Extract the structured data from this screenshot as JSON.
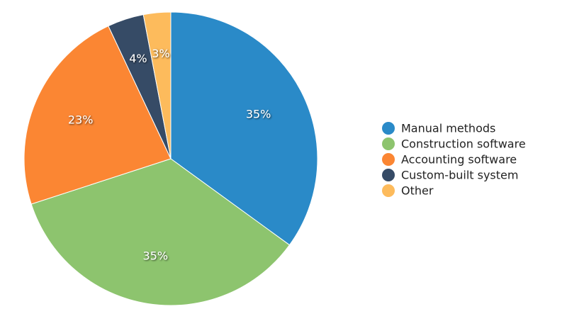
{
  "chart_data": {
    "type": "pie",
    "title": "",
    "labels": [
      "Manual methods",
      "Construction software",
      "Accounting software",
      "Custom-built system",
      "Other"
    ],
    "values": [
      35,
      35,
      23,
      4,
      3
    ],
    "value_labels": [
      "35%",
      "35%",
      "23%",
      "4%",
      "3%"
    ],
    "colors": [
      "#2a8ac8",
      "#8dc46e",
      "#fb8633",
      "#364b66",
      "#fdbb5c"
    ],
    "start_angle": "12 o'clock",
    "direction": "clockwise",
    "legend": {
      "position": "right",
      "items": [
        "Manual methods",
        "Construction software",
        "Accounting software",
        "Custom-built system",
        "Other"
      ]
    }
  }
}
